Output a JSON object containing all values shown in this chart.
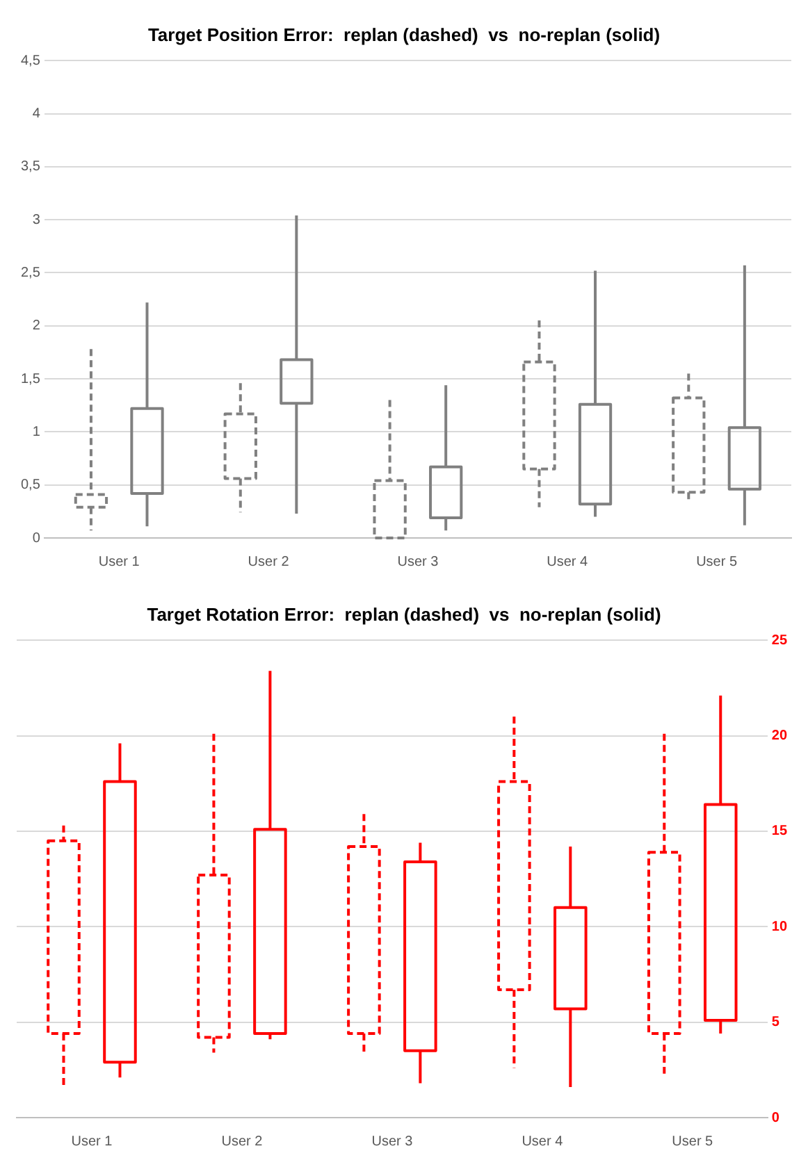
{
  "chart_data": [
    {
      "type": "candlestick",
      "title": "Target Position Error:  replan (dashed)  vs  no-replan (solid)",
      "categories": [
        "User 1",
        "User 2",
        "User 3",
        "User 4",
        "User 5"
      ],
      "ylim": [
        0,
        4.5
      ],
      "yticks": [
        0,
        {
          "value": 0.5,
          "label": "0,5"
        },
        1,
        {
          "value": 1.5,
          "label": "1,5"
        },
        2,
        {
          "value": 2.5,
          "label": "2,5"
        },
        3,
        {
          "value": 3.5,
          "label": "3,5"
        },
        4,
        {
          "value": 4.5,
          "label": "4,5"
        }
      ],
      "grid": "y",
      "legend": false,
      "series": [
        {
          "color": "#808080",
          "line_style": "dashed",
          "ohlc": [
            [
              0.29,
              1.78,
              0.07,
              0.41
            ],
            [
              0.56,
              1.46,
              0.24,
              1.17
            ],
            [
              0,
              1.3,
              0,
              0.54
            ],
            [
              0.65,
              2.05,
              0.29,
              1.66
            ],
            [
              0.43,
              1.55,
              0.35,
              1.32
            ]
          ]
        },
        {
          "color": "#808080",
          "line_style": "solid",
          "ohlc": [
            [
              0.42,
              2.22,
              0.11,
              1.22
            ],
            [
              1.27,
              3.04,
              0.23,
              1.68
            ],
            [
              0.19,
              1.44,
              0.07,
              0.67
            ],
            [
              0.32,
              2.52,
              0.2,
              1.26
            ],
            [
              0.46,
              2.57,
              0.12,
              1.04
            ]
          ]
        }
      ]
    },
    {
      "type": "candlestick",
      "title": "Target Rotation Error:  replan (dashed)  vs  no-replan (solid)",
      "categories": [
        "User 1",
        "User 2",
        "User 3",
        "User 4",
        "User 5"
      ],
      "y2lim": [
        0,
        25
      ],
      "y2ticks": [
        0,
        5,
        10,
        15,
        20,
        25
      ],
      "grid": "y",
      "legend": false,
      "series": [
        {
          "color": "#ff0000",
          "line_style": "dashed",
          "axis": "y2",
          "ohlc": [
            [
              4.4,
              15.3,
              1.7,
              14.5
            ],
            [
              4.2,
              20.1,
              3.4,
              12.7
            ],
            [
              4.4,
              15.9,
              3.4,
              14.2
            ],
            [
              6.7,
              21.0,
              2.6,
              17.6
            ],
            [
              4.4,
              20.1,
              2.3,
              13.9
            ]
          ]
        },
        {
          "color": "#ff0000",
          "line_style": "solid",
          "axis": "y2",
          "ohlc": [
            [
              2.9,
              19.6,
              2.1,
              17.6
            ],
            [
              4.4,
              23.4,
              4.1,
              15.1
            ],
            [
              3.5,
              14.4,
              1.8,
              13.4
            ],
            [
              5.7,
              14.2,
              1.6,
              11.0
            ],
            [
              5.1,
              22.1,
              4.4,
              16.4
            ]
          ]
        }
      ]
    }
  ]
}
